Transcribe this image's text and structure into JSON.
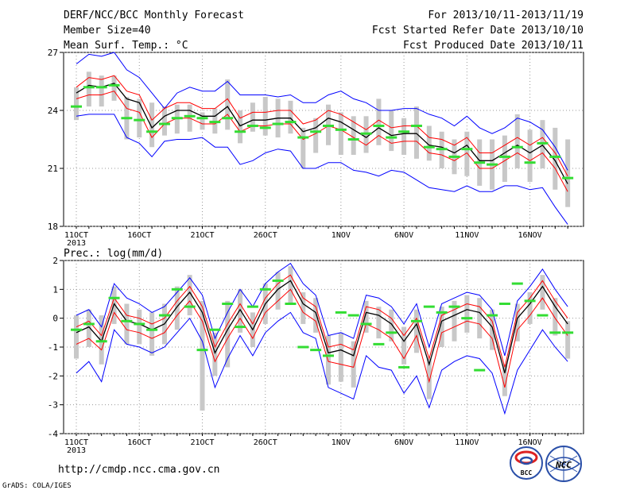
{
  "header": {
    "title": "DERF/NCC/BCC Monthly Forecast",
    "member_size": "Member Size=40",
    "variable": "Mean Surf. Temp.: °C",
    "period": "For 2013/10/11-2013/11/19",
    "fcst_started": "Fcst Started Refer Date 2013/10/10",
    "fcst_produced": "Fcst Produced Date 2013/10/11"
  },
  "footer": {
    "url": "http://cmdp.ncc.cma.gov.cn",
    "credit": "GrADS: COLA/IGES",
    "logo_bcc_text": "BCC",
    "logo_ncc_text": "NCC"
  },
  "colors": {
    "envelope": "#0000ff",
    "spread": "#ff0000",
    "mean": "#000000",
    "box": "#c8c8c8",
    "marker": "#33dd33"
  },
  "chart_data": [
    {
      "type": "line",
      "title": "",
      "ylabel": "Mean Surf. Temp.: °C",
      "ylim": [
        18,
        27
      ],
      "yticks": [
        18,
        21,
        24,
        27
      ],
      "x_tick_labels": [
        "11OCT",
        "16OCT",
        "21OCT",
        "26OCT",
        "1NOV",
        "6NOV",
        "11NOV",
        "16NOV"
      ],
      "x_tick_days": [
        0,
        5,
        10,
        15,
        21,
        26,
        31,
        36
      ],
      "x_year_label": "2013",
      "grid": true,
      "x_days": [
        0,
        1,
        2,
        3,
        4,
        5,
        6,
        7,
        8,
        9,
        10,
        11,
        12,
        13,
        14,
        15,
        16,
        17,
        18,
        19,
        20,
        21,
        22,
        23,
        24,
        25,
        26,
        27,
        28,
        29,
        30,
        31,
        32,
        33,
        34,
        35,
        36,
        37,
        38,
        39
      ],
      "series": [
        {
          "role": "max",
          "values": [
            26.4,
            26.9,
            26.8,
            27.0,
            26.1,
            25.7,
            24.9,
            24.1,
            24.9,
            25.2,
            25.0,
            25.0,
            25.5,
            24.8,
            24.8,
            24.8,
            24.7,
            24.8,
            24.4,
            24.4,
            24.8,
            25.0,
            24.6,
            24.4,
            24.0,
            24.0,
            24.1,
            24.1,
            23.8,
            23.6,
            23.2,
            23.7,
            23.1,
            22.8,
            23.1,
            23.6,
            23.4,
            23.0,
            22.1,
            20.9
          ]
        },
        {
          "role": "upper",
          "values": [
            25.2,
            25.7,
            25.6,
            25.8,
            25.0,
            24.8,
            23.5,
            24.1,
            24.4,
            24.4,
            24.1,
            24.1,
            24.6,
            23.6,
            23.9,
            23.9,
            24.0,
            24.0,
            23.3,
            23.5,
            24.0,
            23.8,
            23.4,
            23.0,
            23.5,
            23.1,
            23.2,
            23.2,
            22.6,
            22.5,
            22.2,
            22.6,
            21.8,
            21.8,
            22.2,
            22.6,
            22.2,
            22.6,
            21.8,
            20.6
          ]
        },
        {
          "role": "mean",
          "values": [
            24.9,
            25.3,
            25.2,
            25.4,
            24.6,
            24.4,
            23.1,
            23.7,
            24.0,
            24.0,
            23.7,
            23.7,
            24.2,
            23.2,
            23.5,
            23.5,
            23.6,
            23.6,
            22.9,
            23.1,
            23.6,
            23.4,
            23.0,
            22.6,
            23.1,
            22.7,
            22.8,
            22.8,
            22.2,
            22.1,
            21.8,
            22.2,
            21.4,
            21.4,
            21.8,
            22.2,
            21.8,
            22.2,
            21.4,
            20.2
          ]
        },
        {
          "role": "lower",
          "values": [
            24.6,
            24.8,
            24.8,
            25.0,
            24.1,
            23.9,
            22.6,
            23.3,
            23.6,
            23.6,
            23.3,
            23.3,
            23.8,
            22.9,
            23.2,
            23.2,
            23.3,
            23.3,
            22.5,
            22.8,
            23.2,
            23.0,
            22.6,
            22.2,
            22.7,
            22.3,
            22.4,
            22.4,
            21.8,
            21.7,
            21.4,
            21.8,
            21.0,
            21.0,
            21.4,
            21.8,
            21.4,
            21.8,
            21.0,
            19.8
          ]
        },
        {
          "role": "min",
          "values": [
            23.7,
            23.8,
            23.8,
            23.8,
            22.6,
            22.3,
            21.6,
            22.4,
            22.5,
            22.5,
            22.6,
            22.1,
            22.1,
            21.2,
            21.4,
            21.8,
            22.0,
            21.9,
            21.0,
            21.0,
            21.3,
            21.3,
            20.9,
            20.8,
            20.6,
            20.9,
            20.8,
            20.4,
            20.0,
            19.9,
            19.8,
            20.1,
            19.8,
            19.8,
            20.1,
            20.1,
            19.9,
            20.0,
            19.0,
            18.1
          ]
        }
      ],
      "box_ranges": [
        [
          23.5,
          25.2
        ],
        [
          24.2,
          26.0
        ],
        [
          24.2,
          25.8
        ],
        [
          24.5,
          25.8
        ],
        [
          22.5,
          24.7
        ],
        [
          22.6,
          24.6
        ],
        [
          22.1,
          24.4
        ],
        [
          22.7,
          24.2
        ],
        [
          22.8,
          24.3
        ],
        [
          22.9,
          24.3
        ],
        [
          23.0,
          23.9
        ],
        [
          22.8,
          24.1
        ],
        [
          23.0,
          25.6
        ],
        [
          22.3,
          24.0
        ],
        [
          22.9,
          24.4
        ],
        [
          22.7,
          24.7
        ],
        [
          22.6,
          24.6
        ],
        [
          22.8,
          24.5
        ],
        [
          21.0,
          23.1
        ],
        [
          21.8,
          23.6
        ],
        [
          22.2,
          24.3
        ],
        [
          21.7,
          23.9
        ],
        [
          21.7,
          23.7
        ],
        [
          21.8,
          23.7
        ],
        [
          22.2,
          24.6
        ],
        [
          21.9,
          24.0
        ],
        [
          21.7,
          23.6
        ],
        [
          21.5,
          24.2
        ],
        [
          21.4,
          23.2
        ],
        [
          21.0,
          22.9
        ],
        [
          20.7,
          22.5
        ],
        [
          20.6,
          22.9
        ],
        [
          20.1,
          22.5
        ],
        [
          19.9,
          22.5
        ],
        [
          20.3,
          22.7
        ],
        [
          21.0,
          23.8
        ],
        [
          20.3,
          23.0
        ],
        [
          21.0,
          23.5
        ],
        [
          19.9,
          23.1
        ],
        [
          19.0,
          22.5
        ]
      ],
      "marker_values": [
        24.2,
        25.2,
        25.2,
        25.3,
        23.6,
        23.5,
        22.9,
        23.3,
        23.6,
        23.7,
        23.6,
        23.4,
        23.6,
        22.9,
        23.2,
        23.1,
        23.3,
        23.4,
        22.6,
        22.9,
        23.2,
        23.0,
        22.5,
        22.8,
        23.2,
        22.6,
        22.9,
        23.2,
        22.1,
        22.0,
        21.6,
        22.0,
        21.3,
        21.2,
        21.6,
        22.1,
        21.3,
        22.3,
        21.6,
        20.5
      ]
    },
    {
      "type": "line",
      "title": "",
      "ylabel": "Prec.: log(mm/d)",
      "ylim": [
        -4,
        2
      ],
      "yticks": [
        -4,
        -3,
        -2,
        -1,
        0,
        1,
        2
      ],
      "x_tick_labels": [
        "11OCT",
        "16OCT",
        "21OCT",
        "26OCT",
        "1NOV",
        "6NOV",
        "11NOV",
        "16NOV"
      ],
      "x_tick_days": [
        0,
        5,
        10,
        15,
        21,
        26,
        31,
        36
      ],
      "x_year_label": "2013",
      "grid": true,
      "x_days": [
        0,
        1,
        2,
        3,
        4,
        5,
        6,
        7,
        8,
        9,
        10,
        11,
        12,
        13,
        14,
        15,
        16,
        17,
        18,
        19,
        20,
        21,
        22,
        23,
        24,
        25,
        26,
        27,
        28,
        29,
        30,
        31,
        32,
        33,
        34,
        35,
        36,
        37,
        38,
        39
      ],
      "series": [
        {
          "role": "max",
          "values": [
            0.1,
            0.3,
            -0.3,
            1.2,
            0.7,
            0.5,
            0.2,
            0.4,
            0.9,
            1.4,
            0.8,
            -0.7,
            0.2,
            1.0,
            0.4,
            1.2,
            1.6,
            1.9,
            1.2,
            0.8,
            -0.6,
            -0.5,
            -0.7,
            0.8,
            0.7,
            0.4,
            -0.2,
            0.5,
            -1.0,
            0.5,
            0.7,
            0.9,
            0.8,
            0.3,
            -1.3,
            0.6,
            1.1,
            1.7,
            1.0,
            0.4
          ]
        },
        {
          "role": "upper",
          "values": [
            -0.3,
            -0.1,
            -0.6,
            0.7,
            0.1,
            0.0,
            -0.2,
            0.0,
            0.6,
            1.1,
            0.4,
            -1.0,
            -0.2,
            0.5,
            -0.2,
            0.7,
            1.2,
            1.5,
            0.7,
            0.4,
            -1.0,
            -0.9,
            -1.1,
            0.4,
            0.3,
            0.0,
            -0.6,
            0.0,
            -1.4,
            0.1,
            0.3,
            0.5,
            0.4,
            -0.1,
            -1.7,
            0.2,
            0.7,
            1.3,
            0.6,
            0.0
          ]
        },
        {
          "role": "mean",
          "values": [
            -0.5,
            -0.3,
            -0.8,
            0.5,
            -0.1,
            -0.2,
            -0.4,
            -0.2,
            0.4,
            0.9,
            0.2,
            -1.2,
            -0.4,
            0.3,
            -0.4,
            0.5,
            1.0,
            1.3,
            0.5,
            0.2,
            -1.2,
            -1.1,
            -1.3,
            0.2,
            0.1,
            -0.2,
            -0.8,
            -0.2,
            -1.6,
            -0.1,
            0.1,
            0.3,
            0.2,
            -0.3,
            -1.9,
            0.0,
            0.5,
            1.1,
            0.4,
            -0.2
          ]
        },
        {
          "role": "lower",
          "values": [
            -0.9,
            -0.7,
            -1.1,
            0.2,
            -0.4,
            -0.5,
            -0.7,
            -0.5,
            0.1,
            0.6,
            -0.1,
            -1.5,
            -0.7,
            0.0,
            -0.7,
            0.2,
            0.6,
            1.0,
            0.2,
            -0.1,
            -1.5,
            -1.6,
            -1.7,
            -0.2,
            -0.4,
            -0.7,
            -1.4,
            -0.6,
            -2.2,
            -0.5,
            -0.3,
            -0.1,
            -0.2,
            -0.7,
            -2.4,
            -0.4,
            0.1,
            0.7,
            0.0,
            -0.6
          ]
        },
        {
          "role": "min",
          "values": [
            -1.9,
            -1.5,
            -2.2,
            -0.4,
            -0.9,
            -1.0,
            -1.2,
            -1.0,
            -0.5,
            0.0,
            -0.8,
            -2.4,
            -1.4,
            -0.6,
            -1.3,
            -0.5,
            -0.1,
            0.2,
            -0.5,
            -0.7,
            -2.4,
            -2.6,
            -2.8,
            -1.3,
            -1.7,
            -1.8,
            -2.6,
            -2.0,
            -3.1,
            -1.8,
            -1.5,
            -1.3,
            -1.4,
            -1.9,
            -3.3,
            -1.8,
            -1.1,
            -0.4,
            -1.0,
            -1.5
          ]
        },
        {
          "role": "marker",
          "values": [
            -0.4,
            -0.2,
            -0.8,
            0.7,
            -0.1,
            -0.2,
            -0.4,
            0.1,
            1.0,
            0.4,
            -1.1,
            -0.4,
            0.5,
            -0.3,
            0.4,
            1.0,
            1.3,
            0.5,
            -1.0,
            -1.1,
            -1.3,
            0.2,
            0.1,
            -0.2,
            -0.9,
            -0.5,
            -1.7,
            -0.1,
            0.4,
            0.2,
            0.4,
            -0.0,
            -1.8,
            0.1,
            0.5,
            1.2,
            0.6,
            0.1,
            -0.5,
            -0.5
          ]
        }
      ],
      "box_ranges": [
        [
          -1.4,
          0.1
        ],
        [
          -1.0,
          0.3
        ],
        [
          -1.6,
          0.1
        ],
        [
          -0.2,
          1.1
        ],
        [
          -0.9,
          0.5
        ],
        [
          -0.9,
          0.3
        ],
        [
          -1.3,
          0.2
        ],
        [
          -0.9,
          0.5
        ],
        [
          -0.4,
          1.1
        ],
        [
          0.1,
          1.5
        ],
        [
          -3.2,
          0.6
        ],
        [
          -2.0,
          -0.5
        ],
        [
          -1.7,
          0.6
        ],
        [
          -0.5,
          1.0
        ],
        [
          -1.0,
          0.2
        ],
        [
          -0.2,
          1.2
        ],
        [
          0.3,
          1.6
        ],
        [
          0.5,
          1.8
        ],
        [
          -0.2,
          0.9
        ],
        [
          -0.5,
          0.7
        ],
        [
          -2.3,
          -0.6
        ],
        [
          -2.2,
          -0.5
        ],
        [
          -2.4,
          -0.8
        ],
        [
          -0.5,
          0.6
        ],
        [
          -0.7,
          0.4
        ],
        [
          -0.8,
          0.3
        ],
        [
          -1.6,
          -0.3
        ],
        [
          -1.2,
          0.3
        ],
        [
          -2.8,
          -1.4
        ],
        [
          -1.0,
          0.4
        ],
        [
          -0.8,
          0.6
        ],
        [
          -0.5,
          0.8
        ],
        [
          -0.7,
          0.7
        ],
        [
          -1.1,
          0.3
        ],
        [
          -2.7,
          -1.6
        ],
        [
          -0.8,
          0.5
        ],
        [
          -0.2,
          0.9
        ],
        [
          0.3,
          1.5
        ],
        [
          -0.6,
          0.7
        ],
        [
          -1.4,
          -0.1
        ]
      ],
      "marker_values": [
        -0.4,
        -0.2,
        -0.8,
        0.7,
        -0.1,
        -0.2,
        -0.4,
        0.1,
        1.0,
        0.4,
        -1.1,
        -0.4,
        0.5,
        -0.3,
        0.4,
        1.0,
        1.3,
        0.5,
        -1.0,
        -1.1,
        -1.3,
        0.2,
        0.1,
        -0.2,
        -0.9,
        -0.5,
        -1.7,
        -0.1,
        0.4,
        0.2,
        0.4,
        -0.0,
        -1.8,
        0.1,
        0.5,
        1.2,
        0.6,
        0.1,
        -0.5,
        -0.5
      ]
    }
  ]
}
